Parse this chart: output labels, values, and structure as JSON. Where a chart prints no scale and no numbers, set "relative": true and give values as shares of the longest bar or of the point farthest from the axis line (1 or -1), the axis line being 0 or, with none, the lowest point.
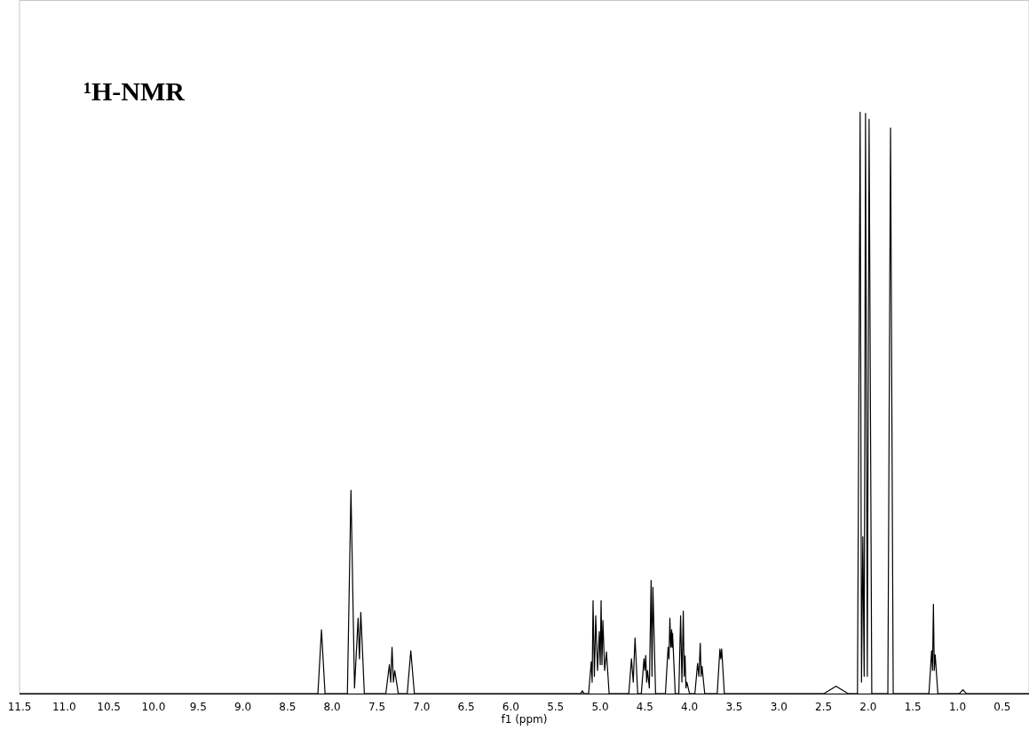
{
  "chart_data": {
    "type": "line",
    "title": "¹H-NMR",
    "xlabel": "f1 (ppm)",
    "relative": true,
    "color": "#000000",
    "xlim": [
      11.5,
      0.2
    ],
    "xticks": [
      11.5,
      {
        "value": 11,
        "label": "11.0"
      },
      10.5,
      {
        "value": 10,
        "label": "10.0"
      },
      9.5,
      {
        "value": 9,
        "label": "9.0"
      },
      8.5,
      {
        "value": 8,
        "label": "8.0"
      },
      7.5,
      {
        "value": 7,
        "label": "7.0"
      },
      6.5,
      {
        "value": 6,
        "label": "6.0"
      },
      5.5,
      {
        "value": 5,
        "label": "5.0"
      },
      4.5,
      {
        "value": 4,
        "label": "4.0"
      },
      3.5,
      {
        "value": 3,
        "label": "3.0"
      },
      2.5,
      {
        "value": 2,
        "label": "2.0"
      },
      1.5,
      {
        "value": 1,
        "label": "1.0"
      },
      0.5
    ],
    "x": [
      11.5,
      8.16,
      8.12,
      8.08,
      7.83,
      7.79,
      7.75,
      7.71,
      7.695,
      7.68,
      7.64,
      7.4,
      7.36,
      7.345,
      7.33,
      7.315,
      7.3,
      7.26,
      7.16,
      7.12,
      7.08,
      5.22,
      5.2,
      5.18,
      5.13,
      5.1,
      5.09,
      5.08,
      5.065,
      5.05,
      5.03,
      5.01,
      5.0,
      4.99,
      4.98,
      4.97,
      4.95,
      4.93,
      4.9,
      4.68,
      4.65,
      4.63,
      4.61,
      4.58,
      4.54,
      4.51,
      4.5,
      4.49,
      4.48,
      4.47,
      4.45,
      4.43,
      4.42,
      4.41,
      4.38,
      4.27,
      4.24,
      4.23,
      4.22,
      4.21,
      4.2,
      4.195,
      4.19,
      4.16,
      4.12,
      4.1,
      4.085,
      4.07,
      4.06,
      4.05,
      4.04,
      4.03,
      4.0,
      3.94,
      3.91,
      3.895,
      3.88,
      3.87,
      3.86,
      3.83,
      3.69,
      3.66,
      3.65,
      3.64,
      3.61,
      2.5,
      2.36,
      2.22,
      2.12,
      2.09,
      2.075,
      2.06,
      2.045,
      2.03,
      2.01,
      1.99,
      1.96,
      1.78,
      1.75,
      1.72,
      1.32,
      1.29,
      1.28,
      1.27,
      1.26,
      1.25,
      1.22,
      0.98,
      0.94,
      0.9,
      0.2
    ],
    "values": [
      0,
      0,
      0.11,
      0,
      0,
      0.35,
      0.01,
      0.13,
      0.06,
      0.14,
      0,
      0,
      0.05,
      0.02,
      0.08,
      0.02,
      0.04,
      0,
      0,
      0.074,
      0,
      0,
      0.005,
      0,
      0,
      0.055,
      0.02,
      0.16,
      0.03,
      0.134,
      0.04,
      0.107,
      0.05,
      0.16,
      0.05,
      0.126,
      0.04,
      0.072,
      0,
      0,
      0.06,
      0.02,
      0.096,
      0,
      0,
      0.06,
      0.04,
      0.066,
      0.02,
      0.04,
      0.01,
      0.195,
      0.03,
      0.183,
      0,
      0,
      0.08,
      0.06,
      0.13,
      0.08,
      0.11,
      0.08,
      0.104,
      0,
      0,
      0.134,
      0.02,
      0.142,
      0.03,
      0.065,
      0.01,
      0.02,
      0,
      0,
      0.052,
      0.03,
      0.087,
      0.03,
      0.047,
      0,
      0,
      0.077,
      0.06,
      0.077,
      0,
      0,
      0.013,
      0,
      0,
      1.0,
      0.02,
      0.27,
      0.03,
      0.998,
      0.03,
      0.988,
      0,
      0,
      0.973,
      0,
      0,
      0.074,
      0.04,
      0.154,
      0.04,
      0.067,
      0,
      0,
      0.007,
      0,
      0
    ]
  }
}
